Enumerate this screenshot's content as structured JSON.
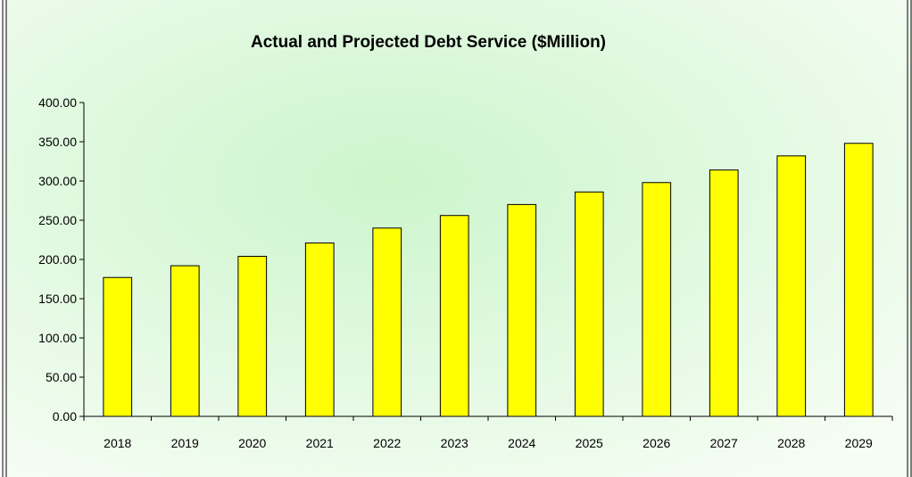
{
  "chart_data": {
    "type": "bar",
    "title": "Actual and Projected Debt Service ($Million)",
    "xlabel": "",
    "ylabel": "",
    "categories": [
      "2018",
      "2019",
      "2020",
      "2021",
      "2022",
      "2023",
      "2024",
      "2025",
      "2026",
      "2027",
      "2028",
      "2029"
    ],
    "values": [
      177,
      192,
      204,
      221,
      240,
      256,
      270,
      286,
      298,
      314,
      332,
      348
    ],
    "ylim": [
      0,
      400
    ],
    "yticks": [
      "0.00",
      "50.00",
      "100.00",
      "150.00",
      "200.00",
      "250.00",
      "300.00",
      "350.00",
      "400.00"
    ],
    "grid": false,
    "legend": "none",
    "colors": {
      "bar_fill": "#ffff00",
      "bar_stroke": "#000000",
      "background_center": "#ccf5cc",
      "background_edge": "#f6fdf4",
      "axis": "#000000",
      "frame": "#000000"
    }
  }
}
